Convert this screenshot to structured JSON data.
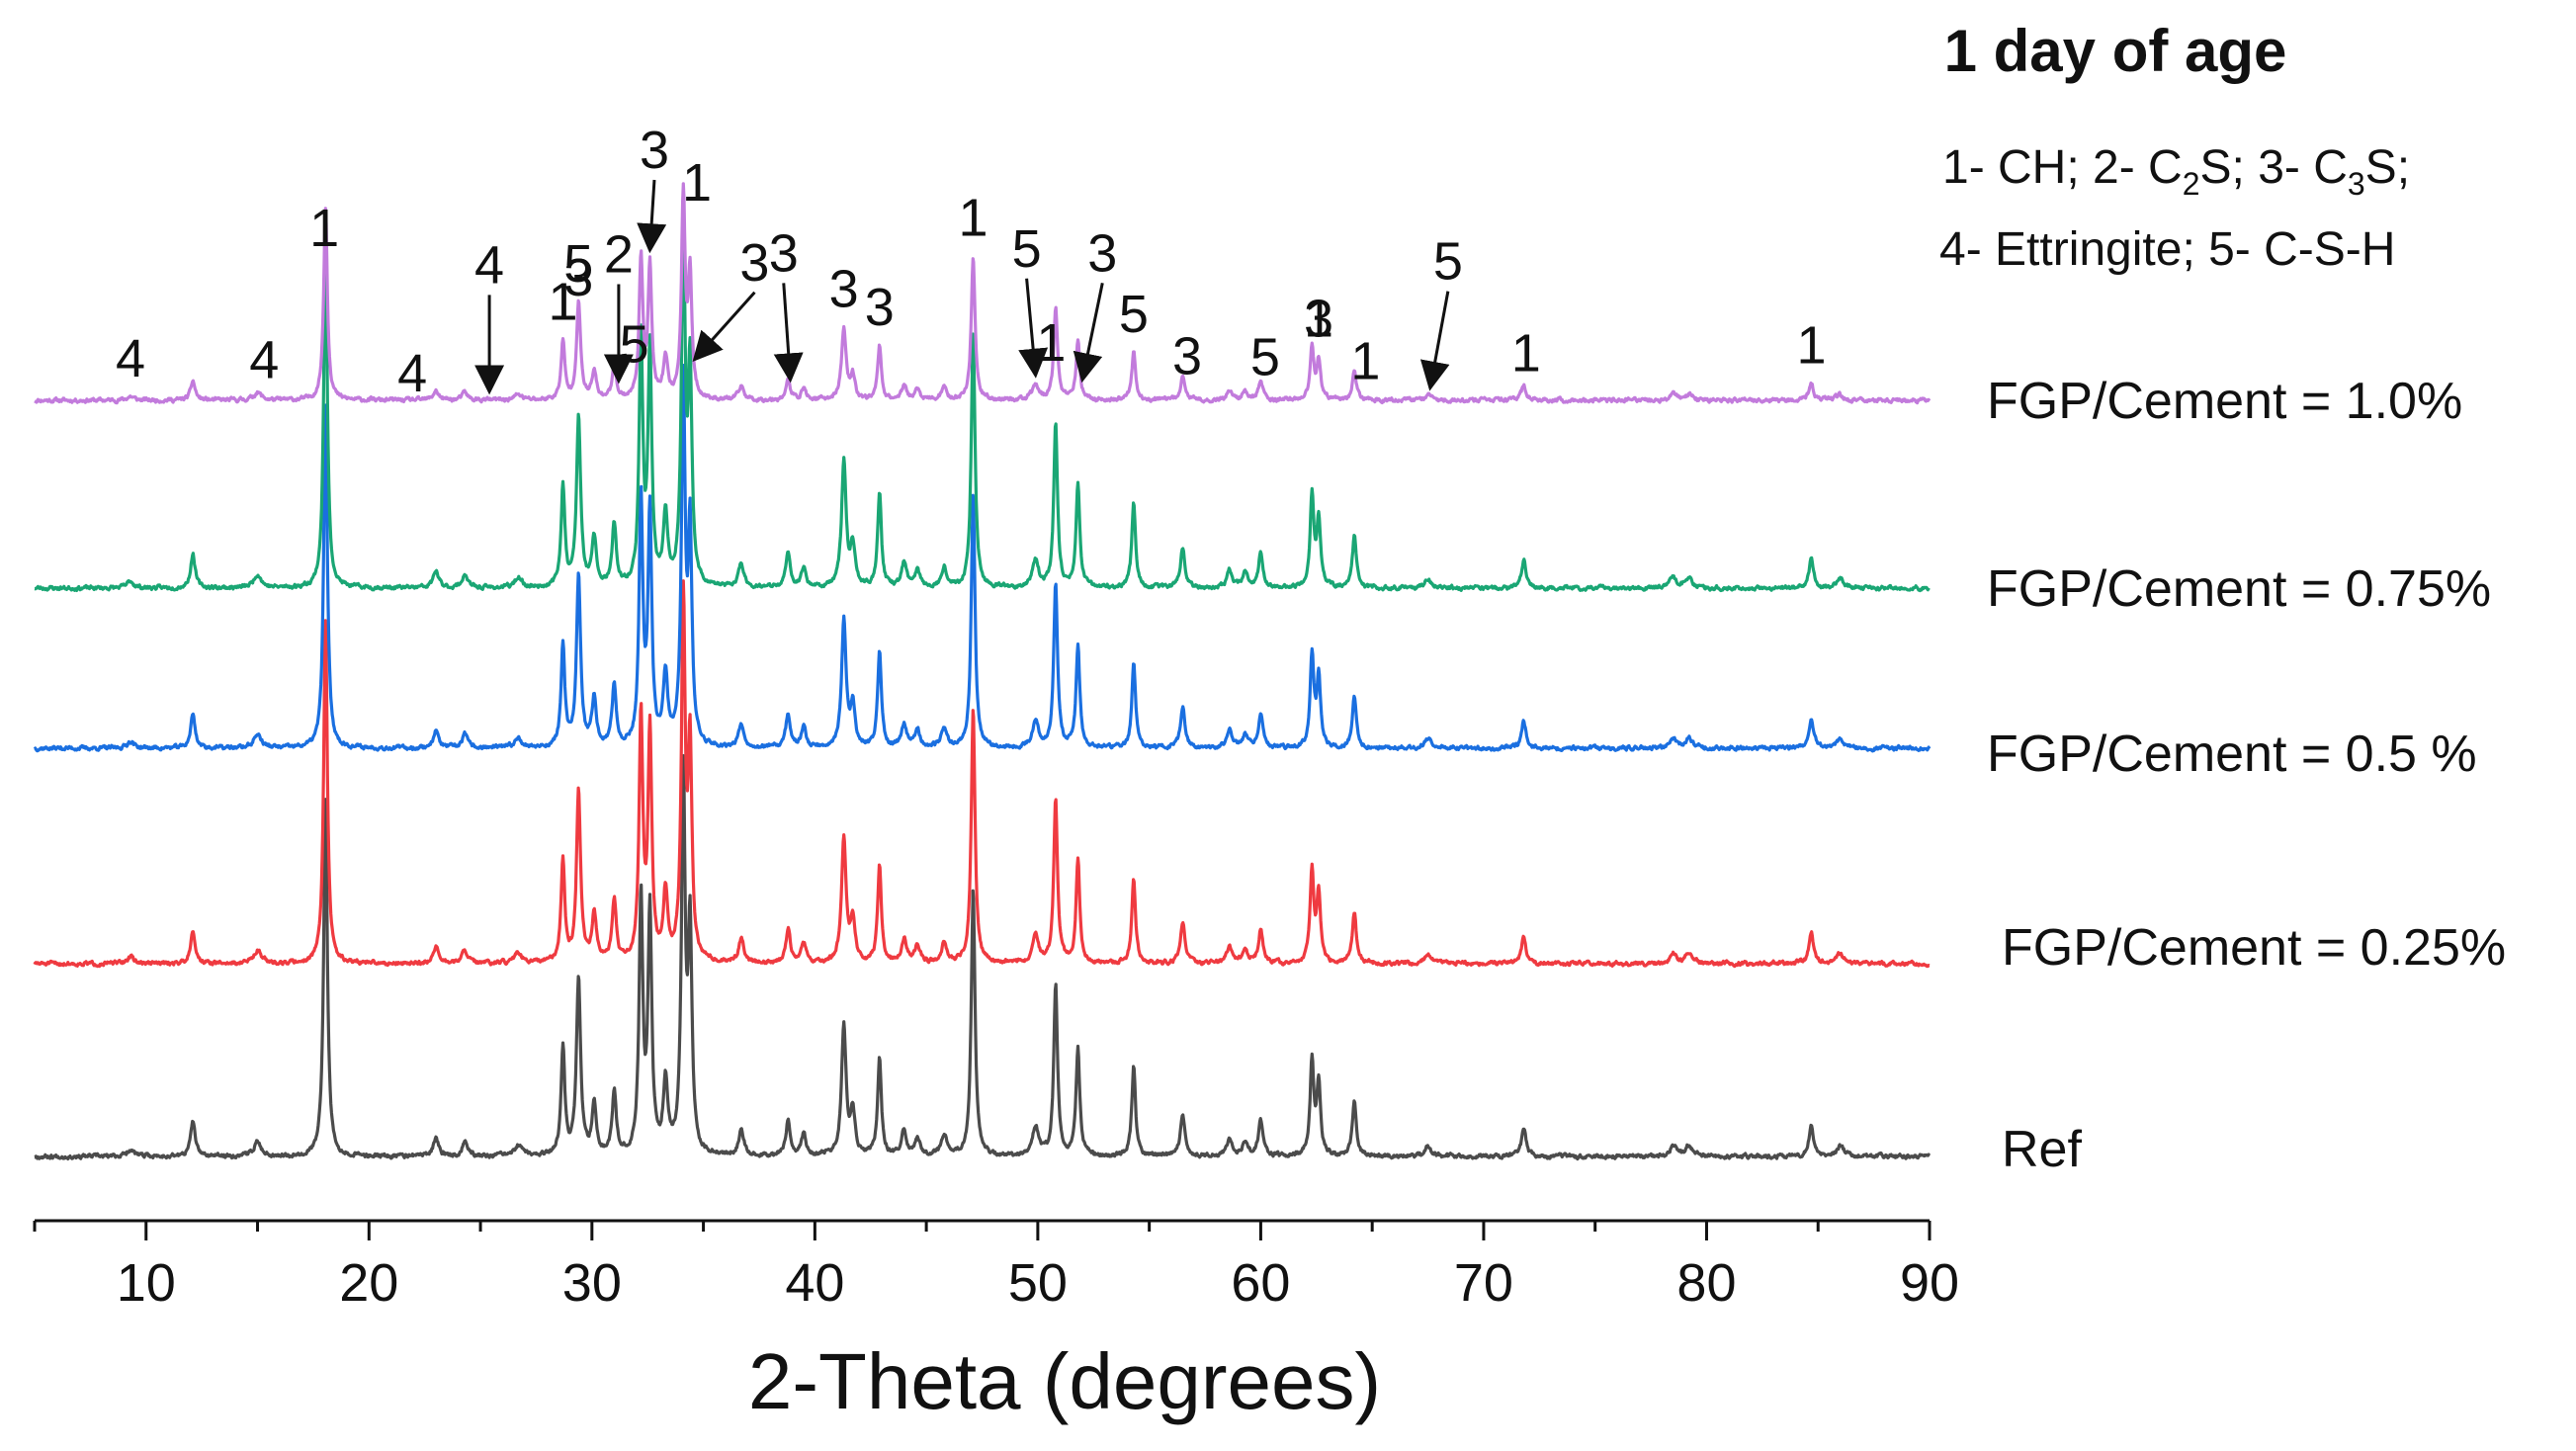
{
  "chart_data": {
    "type": "line",
    "title": "1 day of age",
    "xlabel": "2-Theta (degrees)",
    "ylabel": "",
    "xlim": [
      5,
      90
    ],
    "xticks": [
      10,
      20,
      30,
      40,
      50,
      60,
      70,
      80,
      90
    ],
    "grid": false,
    "legend_block": {
      "line1": [
        "1- CH; 2- C",
        "2",
        "S; 3- C",
        "3",
        "S;"
      ],
      "line2": "4- Ettringite; 5- C-S-H"
    },
    "peaks": [
      {
        "x": 9.3,
        "h": 0.02,
        "w": 0.18
      },
      {
        "x": 12.1,
        "h": 0.1,
        "w": 0.12
      },
      {
        "x": 15.0,
        "h": 0.04,
        "w": 0.2
      },
      {
        "x": 18.05,
        "h": 1.0,
        "w": 0.1
      },
      {
        "x": 23.0,
        "h": 0.05,
        "w": 0.14
      },
      {
        "x": 24.3,
        "h": 0.04,
        "w": 0.14
      },
      {
        "x": 26.7,
        "h": 0.03,
        "w": 0.18
      },
      {
        "x": 28.7,
        "h": 0.3,
        "w": 0.1
      },
      {
        "x": 29.4,
        "h": 0.5,
        "w": 0.11
      },
      {
        "x": 30.1,
        "h": 0.14,
        "w": 0.12
      },
      {
        "x": 31.0,
        "h": 0.18,
        "w": 0.11
      },
      {
        "x": 32.2,
        "h": 0.72,
        "w": 0.1
      },
      {
        "x": 32.6,
        "h": 0.68,
        "w": 0.1
      },
      {
        "x": 33.3,
        "h": 0.2,
        "w": 0.12
      },
      {
        "x": 34.1,
        "h": 1.05,
        "w": 0.1
      },
      {
        "x": 34.4,
        "h": 0.62,
        "w": 0.1
      },
      {
        "x": 36.7,
        "h": 0.07,
        "w": 0.14
      },
      {
        "x": 38.8,
        "h": 0.1,
        "w": 0.12
      },
      {
        "x": 39.5,
        "h": 0.06,
        "w": 0.12
      },
      {
        "x": 41.3,
        "h": 0.37,
        "w": 0.12
      },
      {
        "x": 41.7,
        "h": 0.12,
        "w": 0.12
      },
      {
        "x": 42.9,
        "h": 0.28,
        "w": 0.1
      },
      {
        "x": 44.0,
        "h": 0.07,
        "w": 0.14
      },
      {
        "x": 44.6,
        "h": 0.05,
        "w": 0.14
      },
      {
        "x": 45.8,
        "h": 0.06,
        "w": 0.14
      },
      {
        "x": 47.1,
        "h": 0.75,
        "w": 0.1
      },
      {
        "x": 49.9,
        "h": 0.08,
        "w": 0.16
      },
      {
        "x": 50.8,
        "h": 0.48,
        "w": 0.1
      },
      {
        "x": 51.8,
        "h": 0.3,
        "w": 0.1
      },
      {
        "x": 54.3,
        "h": 0.25,
        "w": 0.1
      },
      {
        "x": 56.5,
        "h": 0.12,
        "w": 0.12
      },
      {
        "x": 58.6,
        "h": 0.05,
        "w": 0.14
      },
      {
        "x": 59.3,
        "h": 0.04,
        "w": 0.14
      },
      {
        "x": 60.0,
        "h": 0.1,
        "w": 0.12
      },
      {
        "x": 62.3,
        "h": 0.27,
        "w": 0.1
      },
      {
        "x": 62.6,
        "h": 0.2,
        "w": 0.1
      },
      {
        "x": 64.2,
        "h": 0.15,
        "w": 0.11
      },
      {
        "x": 67.5,
        "h": 0.03,
        "w": 0.16
      },
      {
        "x": 71.8,
        "h": 0.08,
        "w": 0.12
      },
      {
        "x": 78.5,
        "h": 0.03,
        "w": 0.18
      },
      {
        "x": 79.2,
        "h": 0.03,
        "w": 0.18
      },
      {
        "x": 84.7,
        "h": 0.09,
        "w": 0.12
      },
      {
        "x": 86.0,
        "h": 0.03,
        "w": 0.18
      }
    ],
    "series": [
      {
        "name": "FGP/Cement = 1.0%",
        "color": "#c27bdc",
        "intensity": 0.26,
        "seed": 11
      },
      {
        "name": "FGP/Cement = 0.75%",
        "color": "#1aa674",
        "intensity": 0.46,
        "seed": 23
      },
      {
        "name": "FGP/Cement  = 0.5 %",
        "color": "#1a6fe0",
        "intensity": 0.46,
        "seed": 37
      },
      {
        "name": "FGP/Cement = 0.25%",
        "color": "#ef3a40",
        "intensity": 0.46,
        "seed": 51
      },
      {
        "name": "Ref",
        "color": "#4b4b4b",
        "intensity": 0.48,
        "seed": 67
      }
    ],
    "annotations": [
      {
        "label": "4",
        "x": 9.3
      },
      {
        "label": "4",
        "x": 15.3
      },
      {
        "label": "4",
        "x": 23.1
      },
      {
        "label": "4",
        "x": 25.4,
        "arrow_to": 25.4
      },
      {
        "label": "1",
        "x": 18.0
      },
      {
        "label": "1",
        "x": 28.7
      },
      {
        "label": "3",
        "x": 29.4
      },
      {
        "label": "5",
        "x": 29.4
      },
      {
        "label": "2",
        "x": 31.2,
        "arrow_to": 31.2
      },
      {
        "label": "5",
        "x": 31.9
      },
      {
        "label": "3",
        "x": 32.8,
        "arrow_to": 32.6
      },
      {
        "label": "1",
        "x": 34.8
      },
      {
        "label": "3",
        "x": 37.3,
        "arrow_to": 34.6
      },
      {
        "label": "3",
        "x": 38.6,
        "arrow_to": 38.9
      },
      {
        "label": "3",
        "x": 41.3
      },
      {
        "label": "3",
        "x": 42.9
      },
      {
        "label": "1",
        "x": 47.1
      },
      {
        "label": "5",
        "x": 49.5,
        "arrow_to": 49.9
      },
      {
        "label": "1",
        "x": 50.6
      },
      {
        "label": "3",
        "x": 52.9,
        "arrow_to": 52.0
      },
      {
        "label": "5",
        "x": 54.3
      },
      {
        "label": "3",
        "x": 56.7
      },
      {
        "label": "5",
        "x": 60.2
      },
      {
        "label": "3",
        "x": 62.6
      },
      {
        "label": "1",
        "x": 62.6
      },
      {
        "label": "1",
        "x": 64.7
      },
      {
        "label": "5",
        "x": 68.4,
        "arrow_to": 67.6
      },
      {
        "label": "1",
        "x": 71.9
      },
      {
        "label": "1",
        "x": 84.7
      }
    ]
  }
}
